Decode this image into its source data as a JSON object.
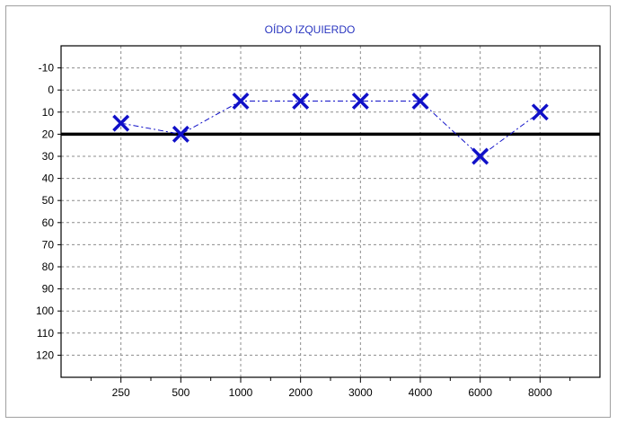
{
  "chart_data": {
    "type": "line",
    "title": "OÍDO IZQUIERDO",
    "xlabel": "",
    "ylabel": "",
    "categories": [
      "250",
      "500",
      "1000",
      "2000",
      "3000",
      "4000",
      "6000",
      "8000"
    ],
    "series": [
      {
        "values": [
          15,
          20,
          5,
          5,
          5,
          5,
          30,
          10
        ],
        "marker": "x",
        "line_style": "dash-dot"
      }
    ],
    "y_ticks": [
      "-10",
      "0",
      "10",
      "20",
      "30",
      "40",
      "50",
      "60",
      "70",
      "80",
      "90",
      "100",
      "110",
      "120"
    ],
    "y_tick_values": [
      -10,
      0,
      10,
      20,
      30,
      40,
      50,
      60,
      70,
      80,
      90,
      100,
      110,
      120
    ],
    "ylim": [
      -20,
      130
    ],
    "y_inverted": true,
    "reference_line": 20,
    "grid": true,
    "colors": {
      "series": "#1010c8",
      "title": "#2a36c0",
      "grid": "#8c8c8c",
      "reference": "#000000",
      "border": "#a0a0a0"
    }
  }
}
